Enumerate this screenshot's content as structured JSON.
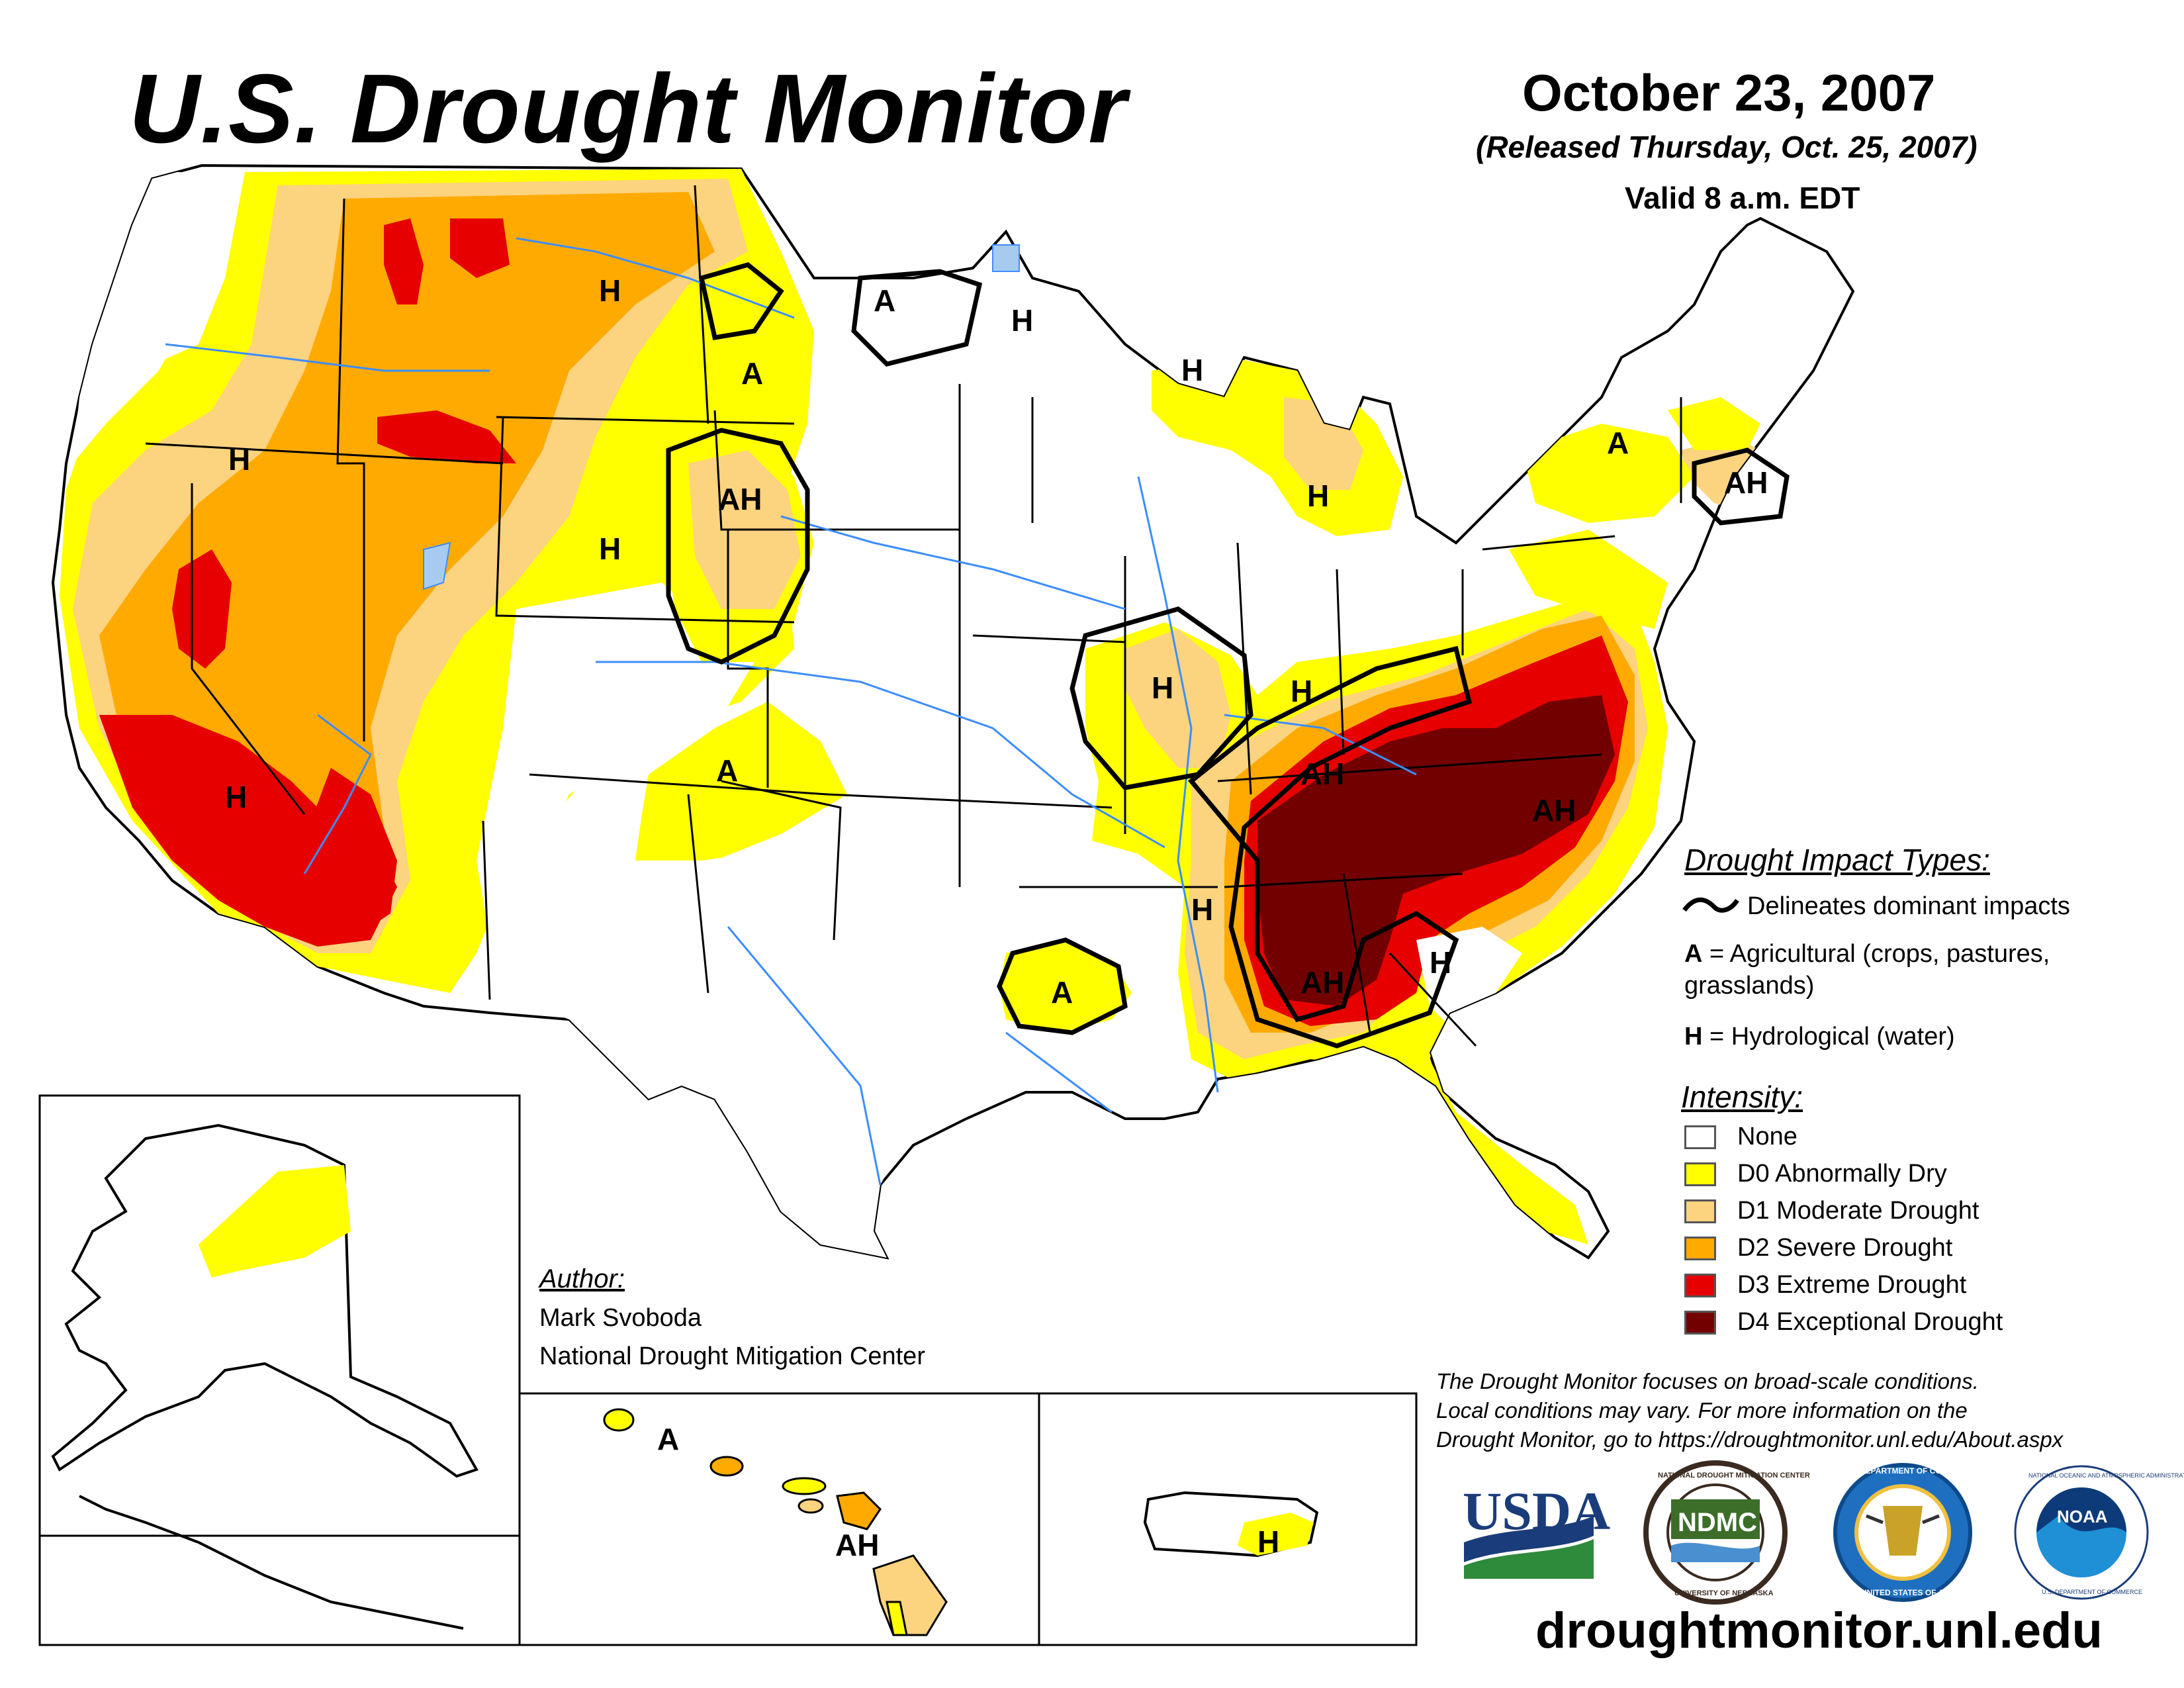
{
  "header": {
    "title": "U.S. Drought Monitor",
    "date": "October 23, 2007",
    "released": "(Released Thursday, Oct. 25, 2007)",
    "valid": "Valid 8 a.m. EDT"
  },
  "impact_legend": {
    "heading": "Drought Impact Types:",
    "delineates": "Delineates dominant impacts",
    "agri_key": "A",
    "agri_text": "= Agricultural (crops, pastures,",
    "agri_text2": "grasslands)",
    "hydro_key": "H",
    "hydro_text": "= Hydrological (water)"
  },
  "intensity_legend": {
    "heading": "Intensity:",
    "items": [
      {
        "label": "None",
        "color": "#ffffff"
      },
      {
        "label": "D0 Abnormally Dry",
        "color": "#ffff00"
      },
      {
        "label": "D1 Moderate Drought",
        "color": "#fcd37f"
      },
      {
        "label": "D2 Severe Drought",
        "color": "#ffaa00"
      },
      {
        "label": "D3 Extreme Drought",
        "color": "#e60000"
      },
      {
        "label": "D4 Exceptional Drought",
        "color": "#730000"
      }
    ]
  },
  "author": {
    "heading": "Author:",
    "name": "Mark Svoboda",
    "org": "National Drought Mitigation Center"
  },
  "note": {
    "line1": "The Drought Monitor focuses on broad-scale conditions.",
    "line2": "Local conditions may vary. For more information on the",
    "line3": "Drought Monitor, go to https://droughtmonitor.unl.edu/About.aspx"
  },
  "logos": {
    "usda": "USDA",
    "ndmc": "NDMC",
    "ndmc_ring_top": "NATIONAL DROUGHT MITIGATION CENTER",
    "ndmc_ring_bottom": "UNIVERSITY OF NEBRASKA",
    "commerce_ring_top": "DEPARTMENT OF COMMERCE",
    "commerce_ring_bottom": "UNITED STATES OF AMERICA",
    "noaa": "NOAA",
    "noaa_ring": "NATIONAL OCEANIC AND ATMOSPHERIC ADMINISTRATION",
    "noaa_ring_bottom": "U.S. DEPARTMENT OF COMMERCE"
  },
  "website": "droughtmonitor.unl.edu",
  "map_labels": {
    "h": "H",
    "a": "A",
    "ah": "AH"
  },
  "colors": {
    "d0": "#ffff00",
    "d1": "#fcd37f",
    "d2": "#ffaa00",
    "d3": "#e60000",
    "d4": "#730000",
    "water": "#4ca6ff"
  }
}
